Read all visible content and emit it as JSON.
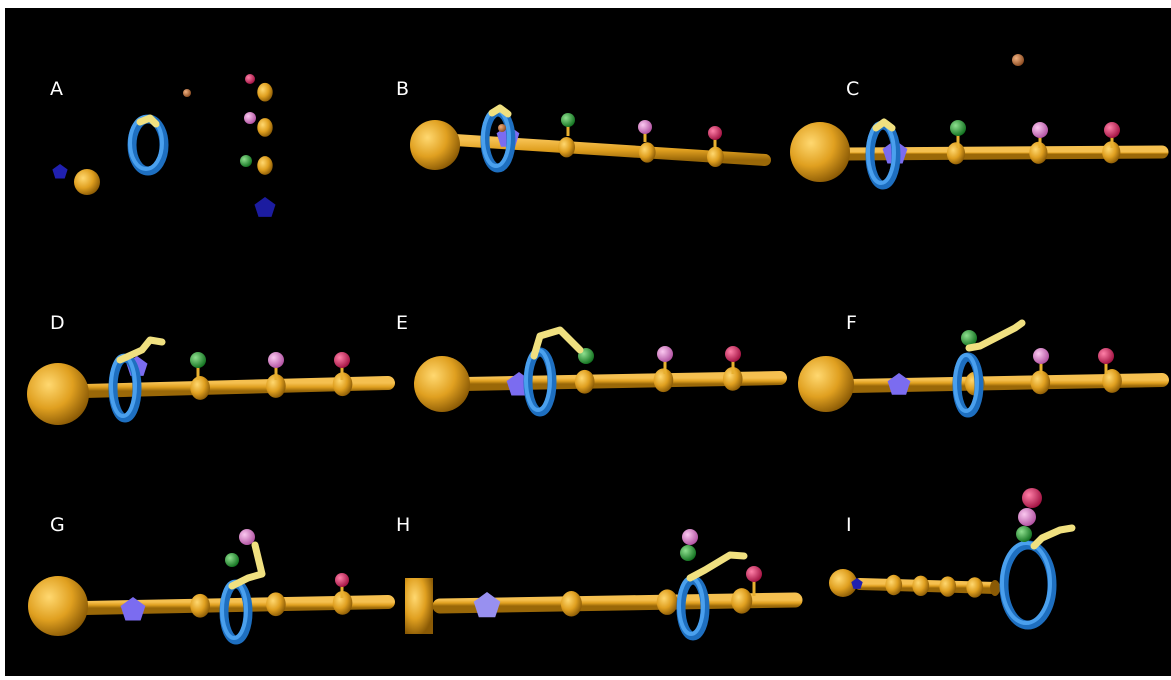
{
  "panels": [
    {
      "label": "A"
    },
    {
      "label": "B"
    },
    {
      "label": "C"
    },
    {
      "label": "D"
    },
    {
      "label": "E"
    },
    {
      "label": "F"
    },
    {
      "label": "G"
    },
    {
      "label": "H"
    },
    {
      "label": "I"
    }
  ]
}
